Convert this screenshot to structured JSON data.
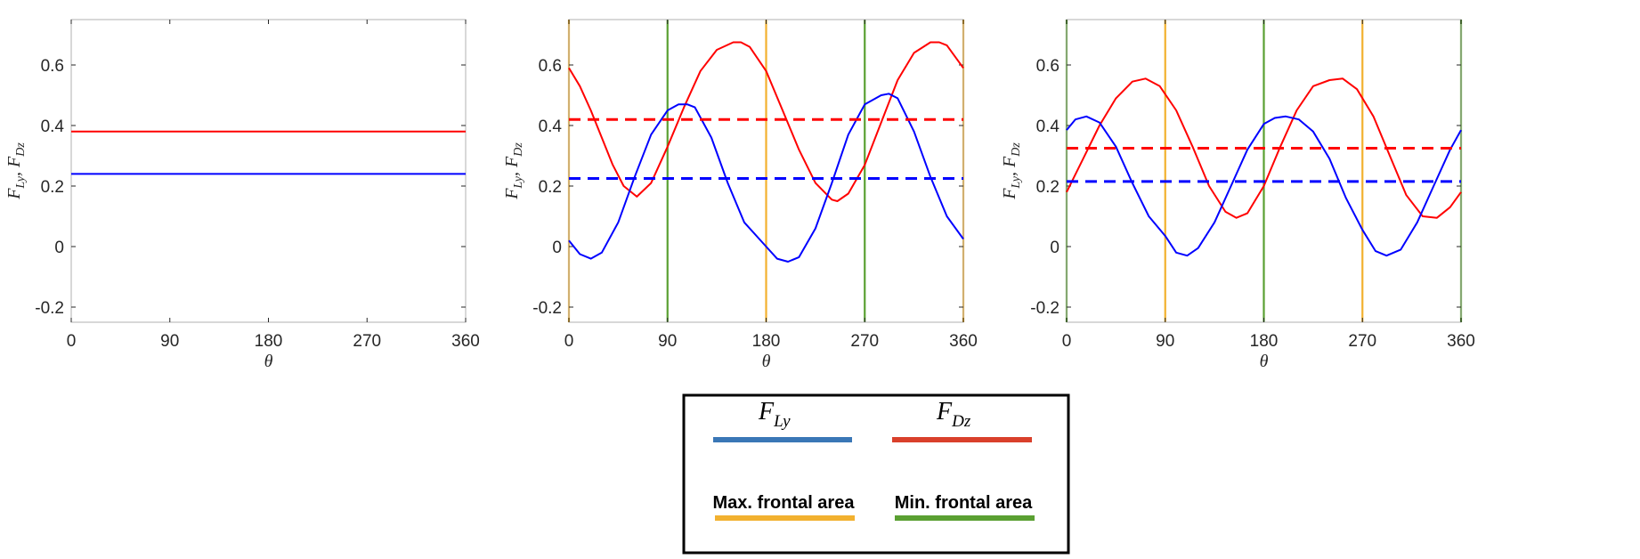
{
  "colors": {
    "f_ly": "#0000ff",
    "f_dz": "#ff0000",
    "legend_f_ly": "#3a77b6",
    "legend_f_dz": "#d9402b",
    "max_frontal": "#f2b12f",
    "min_frontal": "#5aa032",
    "axis": "#262626",
    "tick_color": "#b0b0b0"
  },
  "legend": {
    "f_ly_symbol": "F",
    "f_ly_sub": "Ly",
    "f_dz_symbol": "F",
    "f_dz_sub": "Dz",
    "max_label": "Max. frontal area",
    "min_label": "Min. frontal area"
  },
  "chart_data": [
    {
      "type": "line",
      "xlabel": "θ",
      "ylabel_parts": {
        "a": "F",
        "a_sub": "Ly",
        "sep": ", ",
        "b": "F",
        "b_sub": "Dz"
      },
      "xlim": [
        0,
        360
      ],
      "ylim": [
        -0.25,
        0.75
      ],
      "xticks": [
        0,
        90,
        180,
        270,
        360
      ],
      "yticks": [
        -0.2,
        0,
        0.2,
        0.4,
        0.6
      ],
      "xtick_labels": [
        "0",
        "90",
        "180",
        "270",
        "360"
      ],
      "ytick_labels": [
        "-0.2",
        "0",
        "0.2",
        "0.4",
        "0.6"
      ],
      "vlines": [],
      "series": [
        {
          "key": "f_dz",
          "style": "solid",
          "x": [
            0,
            360
          ],
          "y": [
            0.38,
            0.38
          ]
        },
        {
          "key": "f_ly",
          "style": "solid",
          "x": [
            0,
            360
          ],
          "y": [
            0.24,
            0.24
          ]
        }
      ]
    },
    {
      "type": "line",
      "xlabel": "θ",
      "ylabel_parts": {
        "a": "F",
        "a_sub": "Ly",
        "sep": ", ",
        "b": "F",
        "b_sub": "Dz"
      },
      "xlim": [
        0,
        360
      ],
      "ylim": [
        -0.25,
        0.75
      ],
      "xticks": [
        0,
        90,
        180,
        270,
        360
      ],
      "yticks": [
        -0.2,
        0,
        0.2,
        0.4,
        0.6
      ],
      "xtick_labels": [
        "0",
        "90",
        "180",
        "270",
        "360"
      ],
      "ytick_labels": [
        "-0.2",
        "0",
        "0.2",
        "0.4",
        "0.6"
      ],
      "vlines": [
        {
          "x": 0,
          "key": "max_frontal"
        },
        {
          "x": 90,
          "key": "min_frontal"
        },
        {
          "x": 180,
          "key": "max_frontal"
        },
        {
          "x": 270,
          "key": "min_frontal"
        },
        {
          "x": 360,
          "key": "max_frontal"
        }
      ],
      "series": [
        {
          "key": "f_dz",
          "style": "solid",
          "x": [
            0,
            10,
            20,
            30,
            40,
            50,
            62,
            75,
            90,
            105,
            120,
            135,
            150,
            157,
            165,
            180,
            195,
            210,
            225,
            240,
            245,
            255,
            270,
            285,
            300,
            315,
            330,
            338,
            345,
            360
          ],
          "y": [
            0.59,
            0.53,
            0.45,
            0.36,
            0.27,
            0.2,
            0.165,
            0.21,
            0.33,
            0.46,
            0.58,
            0.65,
            0.675,
            0.675,
            0.66,
            0.58,
            0.45,
            0.32,
            0.21,
            0.155,
            0.15,
            0.175,
            0.27,
            0.41,
            0.55,
            0.64,
            0.675,
            0.675,
            0.665,
            0.59
          ]
        },
        {
          "key": "f_ly",
          "style": "solid",
          "x": [
            0,
            10,
            20,
            30,
            45,
            60,
            75,
            90,
            100,
            108,
            115,
            130,
            145,
            160,
            180,
            190,
            200,
            210,
            225,
            240,
            255,
            270,
            285,
            292,
            300,
            315,
            330,
            345,
            360
          ],
          "y": [
            0.02,
            -0.025,
            -0.04,
            -0.02,
            0.08,
            0.23,
            0.37,
            0.45,
            0.47,
            0.47,
            0.46,
            0.36,
            0.21,
            0.08,
            0.0,
            -0.04,
            -0.05,
            -0.035,
            0.06,
            0.21,
            0.37,
            0.47,
            0.5,
            0.505,
            0.49,
            0.38,
            0.23,
            0.1,
            0.025
          ]
        },
        {
          "key": "f_dz",
          "style": "dashed",
          "x": [
            0,
            360
          ],
          "y": [
            0.42,
            0.42
          ]
        },
        {
          "key": "f_ly",
          "style": "dashed",
          "x": [
            0,
            360
          ],
          "y": [
            0.225,
            0.225
          ]
        }
      ]
    },
    {
      "type": "line",
      "xlabel": "θ",
      "ylabel_parts": {
        "a": "F",
        "a_sub": "Ly",
        "sep": ", ",
        "b": "F",
        "b_sub": "Dz"
      },
      "xlim": [
        0,
        360
      ],
      "ylim": [
        -0.25,
        0.75
      ],
      "xticks": [
        0,
        90,
        180,
        270,
        360
      ],
      "yticks": [
        -0.2,
        0,
        0.2,
        0.4,
        0.6
      ],
      "xtick_labels": [
        "0",
        "90",
        "180",
        "270",
        "360"
      ],
      "ytick_labels": [
        "-0.2",
        "0",
        "0.2",
        "0.4",
        "0.6"
      ],
      "vlines": [
        {
          "x": 0,
          "key": "min_frontal"
        },
        {
          "x": 90,
          "key": "max_frontal"
        },
        {
          "x": 180,
          "key": "min_frontal"
        },
        {
          "x": 270,
          "key": "max_frontal"
        },
        {
          "x": 360,
          "key": "min_frontal"
        }
      ],
      "series": [
        {
          "key": "f_dz",
          "style": "solid",
          "x": [
            0,
            15,
            30,
            45,
            60,
            72,
            85,
            100,
            115,
            130,
            145,
            155,
            165,
            180,
            195,
            210,
            225,
            240,
            252,
            265,
            280,
            295,
            310,
            325,
            338,
            350,
            360
          ],
          "y": [
            0.18,
            0.29,
            0.4,
            0.49,
            0.545,
            0.555,
            0.53,
            0.45,
            0.33,
            0.2,
            0.115,
            0.095,
            0.11,
            0.2,
            0.33,
            0.45,
            0.53,
            0.55,
            0.555,
            0.52,
            0.43,
            0.3,
            0.17,
            0.1,
            0.095,
            0.13,
            0.18
          ]
        },
        {
          "key": "f_ly",
          "style": "solid",
          "x": [
            0,
            8,
            18,
            30,
            45,
            60,
            75,
            90,
            100,
            110,
            120,
            135,
            150,
            165,
            180,
            190,
            200,
            212,
            225,
            240,
            255,
            270,
            282,
            292,
            305,
            320,
            335,
            350,
            360
          ],
          "y": [
            0.385,
            0.42,
            0.43,
            0.41,
            0.33,
            0.21,
            0.1,
            0.035,
            -0.02,
            -0.03,
            -0.005,
            0.08,
            0.2,
            0.32,
            0.405,
            0.425,
            0.43,
            0.42,
            0.38,
            0.29,
            0.16,
            0.055,
            -0.015,
            -0.03,
            -0.01,
            0.08,
            0.2,
            0.32,
            0.385
          ]
        },
        {
          "key": "f_dz",
          "style": "dashed",
          "x": [
            0,
            360
          ],
          "y": [
            0.325,
            0.325
          ]
        },
        {
          "key": "f_ly",
          "style": "dashed",
          "x": [
            0,
            360
          ],
          "y": [
            0.215,
            0.215
          ]
        }
      ]
    }
  ]
}
